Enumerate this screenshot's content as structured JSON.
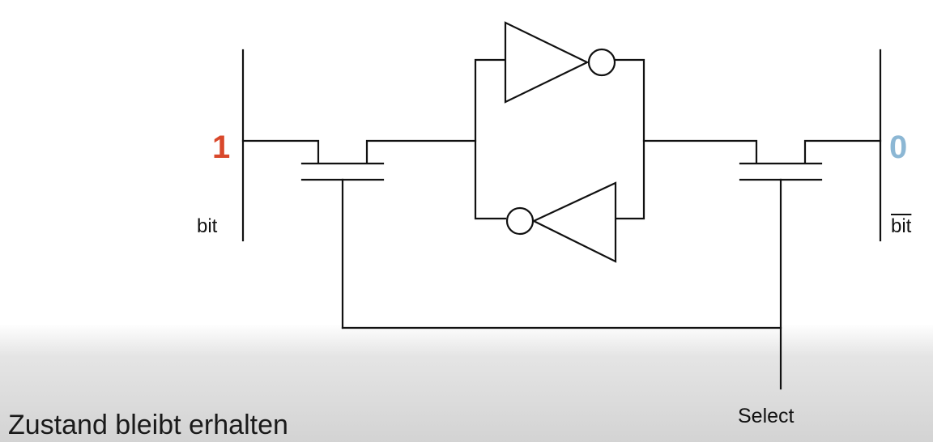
{
  "labels": {
    "bit": "bit",
    "bit_bar": "bit",
    "select": "Select"
  },
  "values": {
    "left": "1",
    "right": "0"
  },
  "colors": {
    "left_value": "#d9482b",
    "right_value": "#8cb7d4",
    "wire": "#111111"
  },
  "caption": "Zustand bleibt erhalten"
}
